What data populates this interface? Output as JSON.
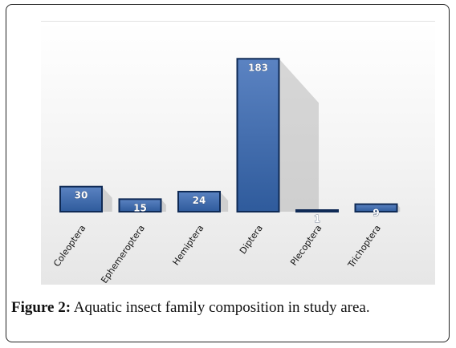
{
  "chart_data": {
    "type": "bar",
    "categories": [
      "Coleoptera",
      "Ephemeroptera",
      "Hemiptera",
      "Diptera",
      "Plecoptera",
      "Trichoptera"
    ],
    "values": [
      30,
      15,
      24,
      183,
      1,
      9
    ],
    "data_labels": [
      "30",
      "15",
      "24",
      "183",
      "1",
      "9"
    ],
    "title": "",
    "xlabel": "",
    "ylabel": "",
    "ylim": [
      0,
      190
    ],
    "grid": false,
    "legend": "none",
    "colors": {
      "bar_fill_top": "#5b83c2",
      "bar_fill_bottom": "#2f5b9c",
      "bar_edge": "#0f2a55",
      "shadow": "#a8a8a8"
    }
  },
  "caption": {
    "label": "Figure 2:",
    "text": " Aquatic insect family composition in study area."
  }
}
